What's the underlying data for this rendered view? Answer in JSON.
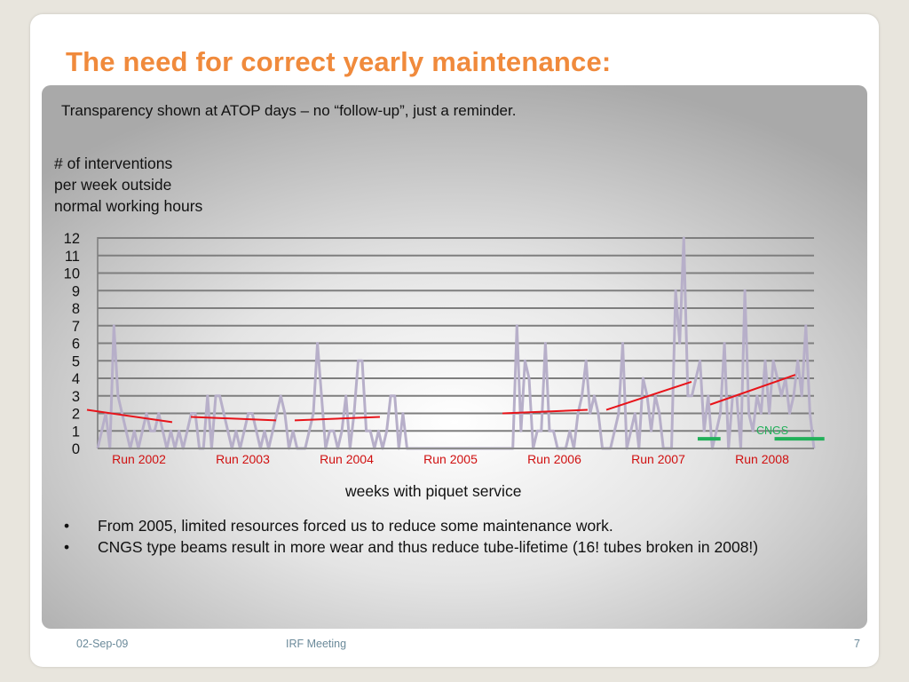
{
  "slide": {
    "title": "The need for correct yearly maintenance:",
    "subtitle": "Transparency shown at ATOP days – no “follow-up”, just a reminder.",
    "bullets": [
      "From 2005, limited resources forced us to reduce some maintenance work.",
      "CNGS type beams result in more wear and thus reduce tube-lifetime (16! tubes broken in 2008!)"
    ],
    "footer": {
      "date": "02-Sep-09",
      "meeting": "IRF Meeting",
      "page": "7"
    }
  },
  "chart_data": {
    "type": "line",
    "ylabel_lines": [
      "# of interventions",
      "per week outside",
      "normal working hours"
    ],
    "xlabel": "weeks with piquet service",
    "ylim": [
      0,
      12
    ],
    "yticks": [
      0,
      1,
      2,
      3,
      4,
      5,
      6,
      7,
      8,
      9,
      10,
      11,
      12
    ],
    "grid": true,
    "colors": {
      "series": "#b7afc9",
      "trend": "#e8141a",
      "cngs": "#22b05a",
      "run_label": "#d01010"
    },
    "runs": [
      "Run 2002",
      "Run 2003",
      "Run 2004",
      "Run 2005",
      "Run 2006",
      "Run 2007",
      "Run 2008"
    ],
    "series": [
      {
        "values": [
          0,
          1,
          2,
          0,
          7,
          3,
          2,
          1,
          0,
          1,
          0,
          1,
          2,
          1,
          1,
          2,
          1,
          0,
          1,
          0,
          1,
          0,
          1,
          2,
          2,
          0,
          0,
          3,
          0,
          3,
          3,
          2,
          1,
          0,
          1,
          0,
          1,
          2,
          2,
          1,
          0,
          1,
          0,
          1,
          2,
          3,
          2,
          0,
          1,
          0,
          0,
          0,
          1,
          2,
          6,
          3,
          0,
          1,
          1,
          0,
          1,
          3,
          0,
          2,
          5,
          5,
          1,
          1,
          0,
          1,
          0,
          1,
          3,
          3,
          0,
          2,
          0,
          0,
          0,
          0,
          0,
          0,
          0,
          0,
          0,
          0,
          0,
          0,
          0,
          0,
          0,
          0,
          0,
          0,
          0,
          0,
          0,
          0,
          0,
          0,
          0,
          0,
          0,
          7,
          1,
          5,
          4,
          0,
          1,
          1,
          6,
          1,
          1,
          0,
          0,
          0,
          1,
          0,
          2,
          3,
          5,
          2,
          3,
          2,
          0,
          0,
          0,
          1,
          2,
          6,
          0,
          1,
          2,
          0,
          4,
          3,
          1,
          3,
          2,
          0,
          0,
          0,
          9,
          6,
          12,
          3,
          3,
          4,
          5,
          1,
          3,
          0,
          1,
          2,
          6,
          0,
          3,
          3,
          0,
          9,
          2,
          1,
          3,
          2,
          5,
          2,
          5,
          4,
          3,
          4,
          2,
          3,
          5,
          3,
          7,
          2,
          0
        ]
      }
    ],
    "trend_lines": [
      {
        "run": "Run 2002",
        "from": 2.2,
        "to": 1.5
      },
      {
        "run": "Run 2003",
        "from": 1.8,
        "to": 1.6
      },
      {
        "run": "Run 2004",
        "from": 1.6,
        "to": 1.8
      },
      {
        "run": "Run 2006",
        "from": 2.0,
        "to": 2.2
      },
      {
        "run": "Run 2007",
        "from": 2.2,
        "to": 3.8
      },
      {
        "run": "Run 2008",
        "from": 2.5,
        "to": 4.2
      }
    ],
    "annotations": [
      {
        "text": "CNGS",
        "color": "#22b05a"
      }
    ],
    "cngs_bars": [
      {
        "x_from": 2007.88,
        "x_to": 2008.1,
        "y": 0.55
      },
      {
        "x_from": 2008.62,
        "x_to": 2009.1,
        "y": 0.55
      }
    ]
  }
}
